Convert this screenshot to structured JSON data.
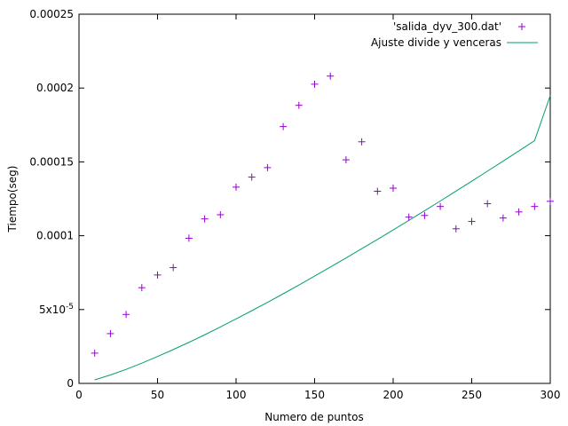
{
  "chart_data": {
    "type": "scatter",
    "title": "",
    "xlabel": "Numero de puntos",
    "ylabel": "Tiempo(seg)",
    "xlim": [
      0,
      300
    ],
    "ylim": [
      0,
      0.00025
    ],
    "grid": false,
    "legend_position": "top-right",
    "x_ticks": [
      {
        "value": 0,
        "label": "0"
      },
      {
        "value": 50,
        "label": "50"
      },
      {
        "value": 100,
        "label": "100"
      },
      {
        "value": 150,
        "label": "150"
      },
      {
        "value": 200,
        "label": "200"
      },
      {
        "value": 250,
        "label": "250"
      },
      {
        "value": 300,
        "label": "300"
      }
    ],
    "y_ticks": [
      {
        "value": 0,
        "label": "0"
      },
      {
        "value": 5e-05,
        "label": "5x10",
        "exp": "-5"
      },
      {
        "value": 0.0001,
        "label": "0.0001"
      },
      {
        "value": 0.00015,
        "label": "0.00015"
      },
      {
        "value": 0.0002,
        "label": "0.0002"
      },
      {
        "value": 0.00025,
        "label": "0.00025"
      }
    ],
    "series": [
      {
        "name": "'salida_dyv_300.dat'",
        "kind": "points",
        "color": "#9400d3",
        "x": [
          10,
          20,
          30,
          40,
          50,
          60,
          70,
          80,
          90,
          100,
          110,
          120,
          130,
          140,
          150,
          160,
          170,
          180,
          190,
          200,
          210,
          220,
          230,
          240,
          250,
          260,
          270,
          280,
          290,
          300
        ],
        "y": [
          2.05e-05,
          3.37e-05,
          4.67e-05,
          6.48e-05,
          7.34e-05,
          7.84e-05,
          9.83e-05,
          0.0001114,
          0.0001142,
          0.0001329,
          0.0001397,
          0.0001461,
          0.0001739,
          0.0001883,
          0.0002026,
          0.0002081,
          0.0001514,
          0.0001636,
          0.0001301,
          0.0001322,
          0.0001126,
          0.0001137,
          0.0001198,
          0.0001047,
          0.0001097,
          0.0001217,
          0.000112,
          0.0001161,
          0.0001198,
          0.0001233
        ]
      },
      {
        "name": "Ajuste divide y venceras",
        "kind": "line",
        "color": "#009e73",
        "x": [
          10,
          20,
          30,
          40,
          50,
          60,
          70,
          80,
          90,
          100,
          110,
          120,
          130,
          140,
          150,
          160,
          170,
          180,
          190,
          200,
          210,
          220,
          230,
          240,
          250,
          260,
          270,
          280,
          290,
          300
        ],
        "y": [
          2.4e-06,
          5.7e-06,
          9.5e-06,
          1.37e-05,
          1.82e-05,
          2.29e-05,
          2.78e-05,
          3.29e-05,
          3.82e-05,
          4.37e-05,
          4.92e-05,
          5.49e-05,
          6.07e-05,
          6.66e-05,
          7.27e-05,
          7.88e-05,
          8.49e-05,
          9.12e-05,
          9.75e-05,
          0.0001039,
          0.0001104,
          0.0001169,
          0.0001235,
          0.0001302,
          0.0001369,
          0.0001437,
          0.0001505,
          0.0001574,
          0.0001643,
          0.0001949
        ]
      }
    ]
  }
}
